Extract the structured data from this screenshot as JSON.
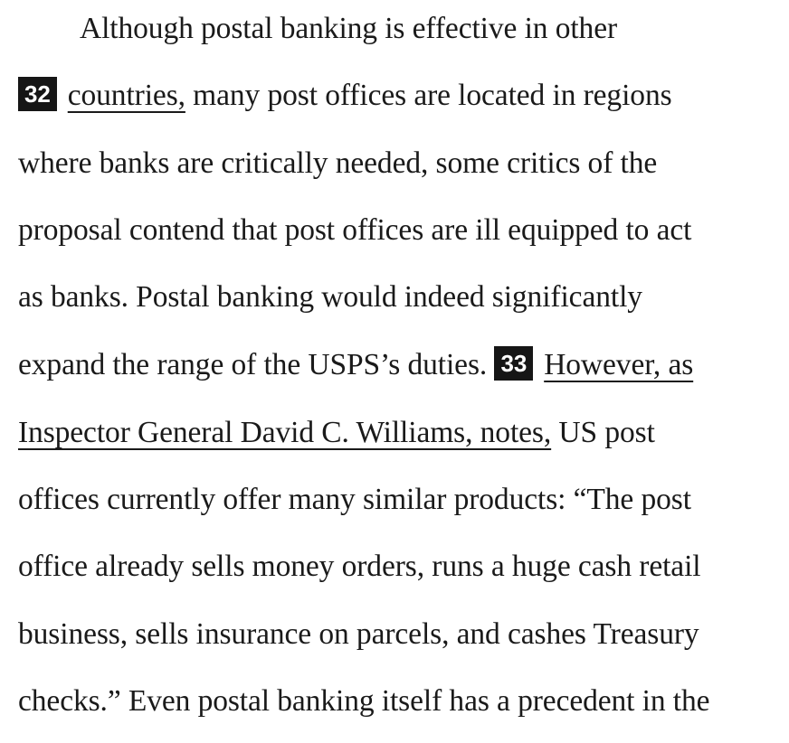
{
  "passage": {
    "lines": [
      {
        "text": "Although postal banking is effective in other"
      },
      {
        "qnum": "32",
        "underlined": "countries,",
        "after": " many post offices are located in regions"
      },
      {
        "text": "where banks are critically needed, some critics of the"
      },
      {
        "text": "proposal contend that post offices are ill equipped to act"
      },
      {
        "text": "as banks. Postal banking would indeed significantly"
      },
      {
        "before": "expand the range of the USPS’s duties. ",
        "qnum": "33",
        "underlined": "However, as"
      },
      {
        "underlined": "Inspector General David C. Williams, notes,",
        "after": " US post"
      },
      {
        "text": "offices currently offer many similar products: “The post"
      },
      {
        "text": "office already sells money orders, runs a huge cash retail"
      },
      {
        "text": "business, sells insurance on parcels, and cashes Treasury"
      },
      {
        "text": "checks.” Even postal banking itself has a precedent in the"
      }
    ]
  }
}
